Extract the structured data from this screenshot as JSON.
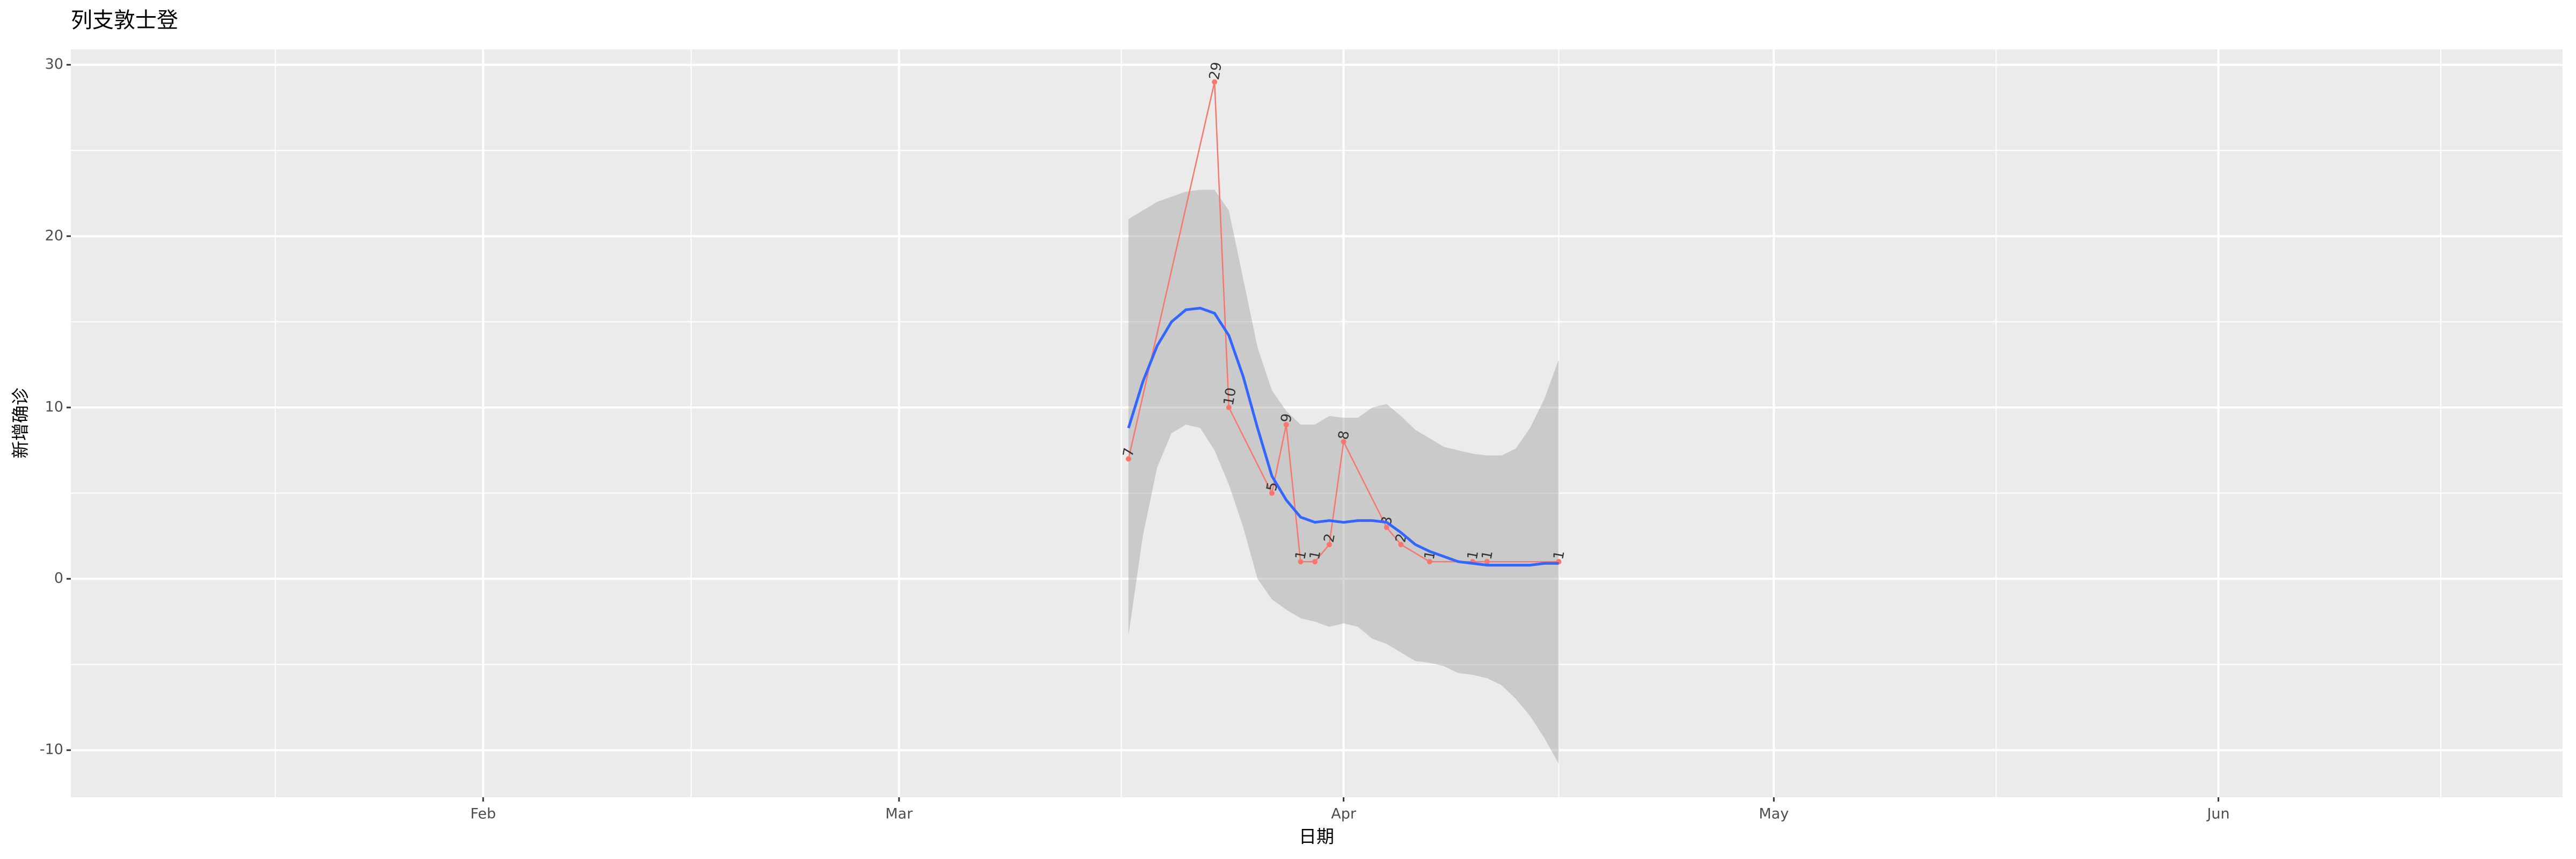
{
  "chart_data": {
    "type": "line",
    "title": "列支敦士登",
    "x_label": "日期",
    "y_label": "新增确诊",
    "xlim": [
      3.25,
      177
    ],
    "xticks": [
      {
        "value": 32,
        "label": "Feb"
      },
      {
        "value": 61,
        "label": "Mar"
      },
      {
        "value": 92,
        "label": "Apr"
      },
      {
        "value": 122,
        "label": "May"
      },
      {
        "value": 153,
        "label": "Jun"
      }
    ],
    "ylim": [
      -12.75,
      30.9
    ],
    "yticks": [
      -10,
      0,
      10,
      20,
      30
    ],
    "grid": true,
    "points": {
      "color": "#F8766D",
      "x": [
        77,
        83,
        84,
        87,
        88,
        89,
        90,
        91,
        92,
        95,
        96,
        98,
        101,
        102,
        107
      ],
      "values": [
        7,
        29,
        10,
        5,
        9,
        1,
        1,
        2,
        8,
        3,
        2,
        1,
        1,
        1,
        1
      ]
    },
    "smooth": {
      "color": "#3366FF",
      "band_color": "#999999",
      "x": [
        77,
        78,
        79,
        80,
        81,
        82,
        83,
        84,
        85,
        86,
        87,
        88,
        89,
        90,
        91,
        92,
        93,
        94,
        95,
        96,
        97,
        98,
        99,
        100,
        101,
        102,
        103,
        104,
        105,
        106,
        107
      ],
      "values": [
        8.8,
        11.5,
        13.6,
        15.0,
        15.7,
        15.8,
        15.5,
        14.2,
        11.8,
        8.8,
        6.0,
        4.6,
        3.6,
        3.3,
        3.4,
        3.3,
        3.4,
        3.4,
        3.3,
        2.7,
        2.0,
        1.6,
        1.3,
        1.0,
        0.9,
        0.8,
        0.8,
        0.8,
        0.8,
        0.9,
        0.9
      ],
      "upper": [
        21.0,
        21.5,
        22.0,
        22.3,
        22.6,
        22.7,
        22.7,
        21.5,
        17.5,
        13.5,
        11.0,
        9.8,
        9.0,
        9.0,
        9.5,
        9.4,
        9.4,
        10.0,
        10.2,
        9.5,
        8.7,
        8.2,
        7.7,
        7.5,
        7.3,
        7.2,
        7.2,
        7.6,
        8.8,
        10.5,
        12.8
      ],
      "lower": [
        -3.3,
        2.5,
        6.5,
        8.5,
        9.0,
        8.8,
        7.5,
        5.5,
        3.0,
        0,
        -1.2,
        -1.8,
        -2.3,
        -2.5,
        -2.8,
        -2.6,
        -2.8,
        -3.5,
        -3.8,
        -4.3,
        -4.8,
        -4.9,
        -5.1,
        -5.5,
        -5.6,
        -5.8,
        -6.2,
        -7.0,
        -8.0,
        -9.3,
        -10.8
      ]
    }
  }
}
